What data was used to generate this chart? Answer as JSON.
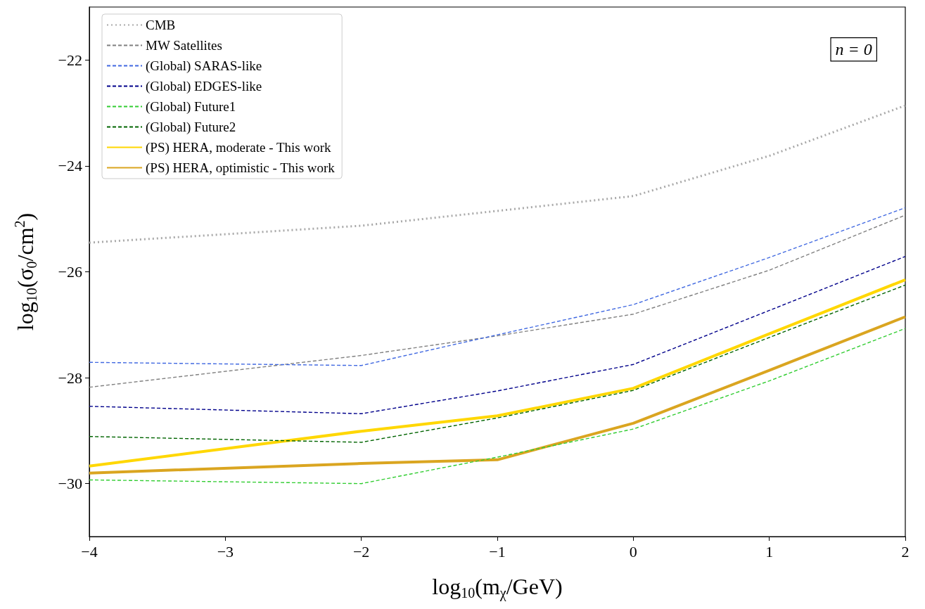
{
  "chart_data": {
    "type": "line",
    "xlabel": "log$_{10}$(m$_{χ}$/GeV)",
    "ylabel": "log$_{10}$(σ$_{0}$/cm$^{2}$)",
    "annotations": [
      "n = 0"
    ],
    "x": [
      -4,
      -2,
      -1,
      0,
      1,
      2
    ],
    "xlim": [
      -4,
      2
    ],
    "xticks": [
      -4,
      -3,
      -2,
      -1,
      0,
      1,
      2
    ],
    "ylim": [
      -31,
      -21
    ],
    "yticks": [
      -30,
      -28,
      -26,
      -24,
      -22
    ],
    "grid": false,
    "legend": "top left",
    "marker": "none",
    "series": [
      {
        "name": "CMB",
        "color": "#a9a9a9",
        "line_style": "dotted",
        "values": [
          -25.45,
          -25.13,
          -24.85,
          -24.57,
          -23.81,
          -22.86
        ]
      },
      {
        "name": "MW Satellites",
        "color": "#808080",
        "line_style": "dashed",
        "values": [
          -28.18,
          -27.58,
          -27.21,
          -26.8,
          -25.97,
          -24.93
        ]
      },
      {
        "name": "(Global) SARAS-like",
        "color": "#4169e1",
        "line_style": "dashed",
        "values": [
          -27.71,
          -27.77,
          -27.19,
          -26.62,
          -25.73,
          -24.79
        ]
      },
      {
        "name": "(Global) EDGES-like",
        "color": "#00008b",
        "line_style": "dashed",
        "values": [
          -28.54,
          -28.68,
          -28.25,
          -27.75,
          -26.73,
          -25.71
        ]
      },
      {
        "name": "(Global) Future1",
        "color": "#32cd32",
        "line_style": "dashed",
        "values": [
          -29.93,
          -30.0,
          -29.5,
          -28.97,
          -28.06,
          -27.07
        ]
      },
      {
        "name": "(Global) Future2",
        "color": "#006400",
        "line_style": "dashed",
        "values": [
          -29.11,
          -29.22,
          -28.76,
          -28.24,
          -27.24,
          -26.25
        ]
      },
      {
        "name": "(PS) HERA, moderate - This work",
        "color": "#ffd700",
        "line_style": "solid",
        "values": [
          -29.67,
          -29.01,
          -28.72,
          -28.2,
          -27.17,
          -26.15
        ]
      },
      {
        "name": "(PS) HERA, optimistic - This work",
        "color": "#daa520",
        "line_style": "solid",
        "values": [
          -29.8,
          -29.62,
          -29.55,
          -28.86,
          -27.86,
          -26.85
        ]
      }
    ]
  }
}
